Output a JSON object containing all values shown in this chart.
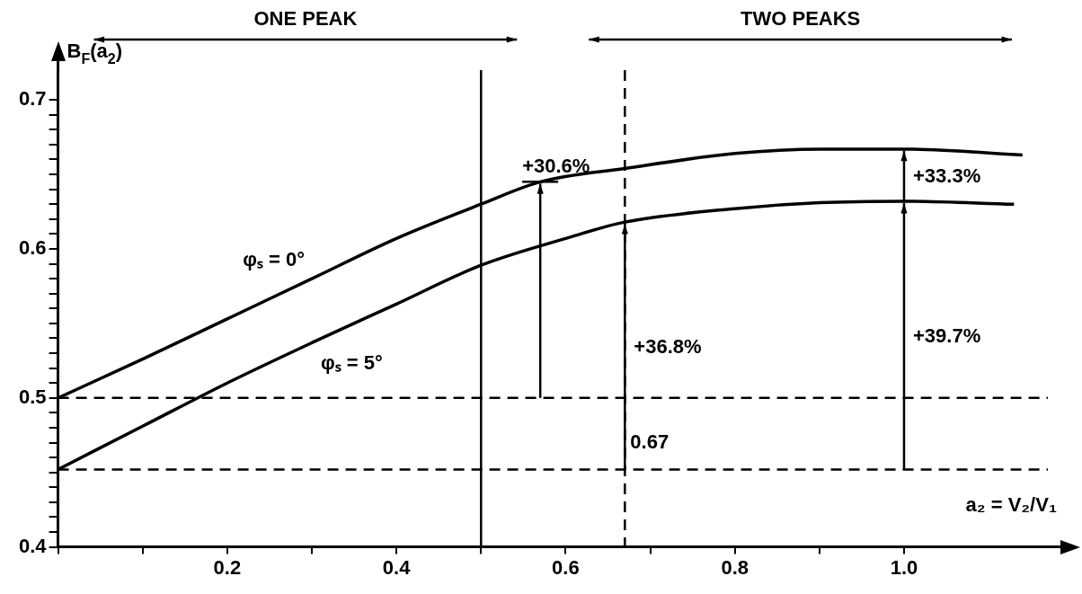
{
  "chart_data": {
    "type": "line",
    "xlabel": "a₂ = V₂/V₁",
    "ylabel": "B$_{F}$(a$_{2}$)",
    "series": [
      {
        "name": "φₛ = 0°",
        "color": "#000000",
        "x": [
          0,
          0.1,
          0.2,
          0.3,
          0.4,
          0.5,
          0.57,
          0.67,
          0.8,
          0.9,
          1.0,
          1.14
        ],
        "values": [
          0.5,
          0.526,
          0.553,
          0.58,
          0.607,
          0.63,
          0.645,
          0.654,
          0.664,
          0.667,
          0.667,
          0.663
        ]
      },
      {
        "name": "φₛ = 5°",
        "color": "#000000",
        "x": [
          0,
          0.1,
          0.2,
          0.3,
          0.4,
          0.5,
          0.6,
          0.67,
          0.8,
          0.9,
          1.0,
          1.13
        ],
        "values": [
          0.452,
          0.481,
          0.51,
          0.537,
          0.563,
          0.589,
          0.607,
          0.618,
          0.627,
          0.631,
          0.632,
          0.63
        ]
      }
    ],
    "xlim": [
      0,
      1.17
    ],
    "xticks": [
      {
        "value": 0,
        "label": null
      },
      {
        "value": 0.1,
        "label": null
      },
      0.2,
      {
        "value": 0.3,
        "label": null
      },
      0.4,
      {
        "value": 0.5,
        "label": null
      },
      0.6,
      {
        "value": 0.7,
        "label": null
      },
      0.8,
      {
        "value": 0.9,
        "label": null
      },
      {
        "value": 1.0,
        "label": "1.0"
      }
    ],
    "ylim": [
      0.4,
      0.72
    ],
    "yticks": [
      0.4,
      {
        "value": 0.41,
        "label": null
      },
      {
        "value": 0.42,
        "label": null
      },
      {
        "value": 0.43,
        "label": null
      },
      {
        "value": 0.44,
        "label": null
      },
      {
        "value": 0.45,
        "label": null
      },
      {
        "value": 0.46,
        "label": null
      },
      {
        "value": 0.47,
        "label": null
      },
      {
        "value": 0.48,
        "label": null
      },
      {
        "value": 0.49,
        "label": null
      },
      0.5,
      {
        "value": 0.51,
        "label": null
      },
      {
        "value": 0.52,
        "label": null
      },
      {
        "value": 0.53,
        "label": null
      },
      {
        "value": 0.54,
        "label": null
      },
      {
        "value": 0.55,
        "label": null
      },
      {
        "value": 0.56,
        "label": null
      },
      {
        "value": 0.57,
        "label": null
      },
      {
        "value": 0.58,
        "label": null
      },
      {
        "value": 0.59,
        "label": null
      },
      0.6,
      {
        "value": 0.61,
        "label": null
      },
      {
        "value": 0.62,
        "label": null
      },
      {
        "value": 0.63,
        "label": null
      },
      {
        "value": 0.64,
        "label": null
      },
      {
        "value": 0.65,
        "label": null
      },
      {
        "value": 0.66,
        "label": null
      },
      {
        "value": 0.67,
        "label": null
      },
      {
        "value": 0.68,
        "label": null
      },
      {
        "value": 0.69,
        "label": null
      },
      0.7
    ],
    "grid": false,
    "legend": false,
    "marker": "none",
    "line_style": "solid",
    "ref_lines": [
      {
        "axis": "y",
        "value": 0.5,
        "line_style": "dashed"
      },
      {
        "axis": "y",
        "value": 0.452,
        "line_style": "dashed"
      },
      {
        "axis": "x",
        "value": 0.67,
        "label": "0.67",
        "line_style": "dashed"
      },
      {
        "axis": "x",
        "value": 0.5,
        "line_style": "solid"
      }
    ],
    "annotations": [
      "ONE PEAK",
      "TWO PEAKS",
      {
        "text": "+30.6%",
        "x": 0.57,
        "y": 0.645
      },
      {
        "text": "+33.3%",
        "x": 1.0,
        "y": 0.667
      },
      "+36.8%",
      "+39.7%"
    ]
  }
}
